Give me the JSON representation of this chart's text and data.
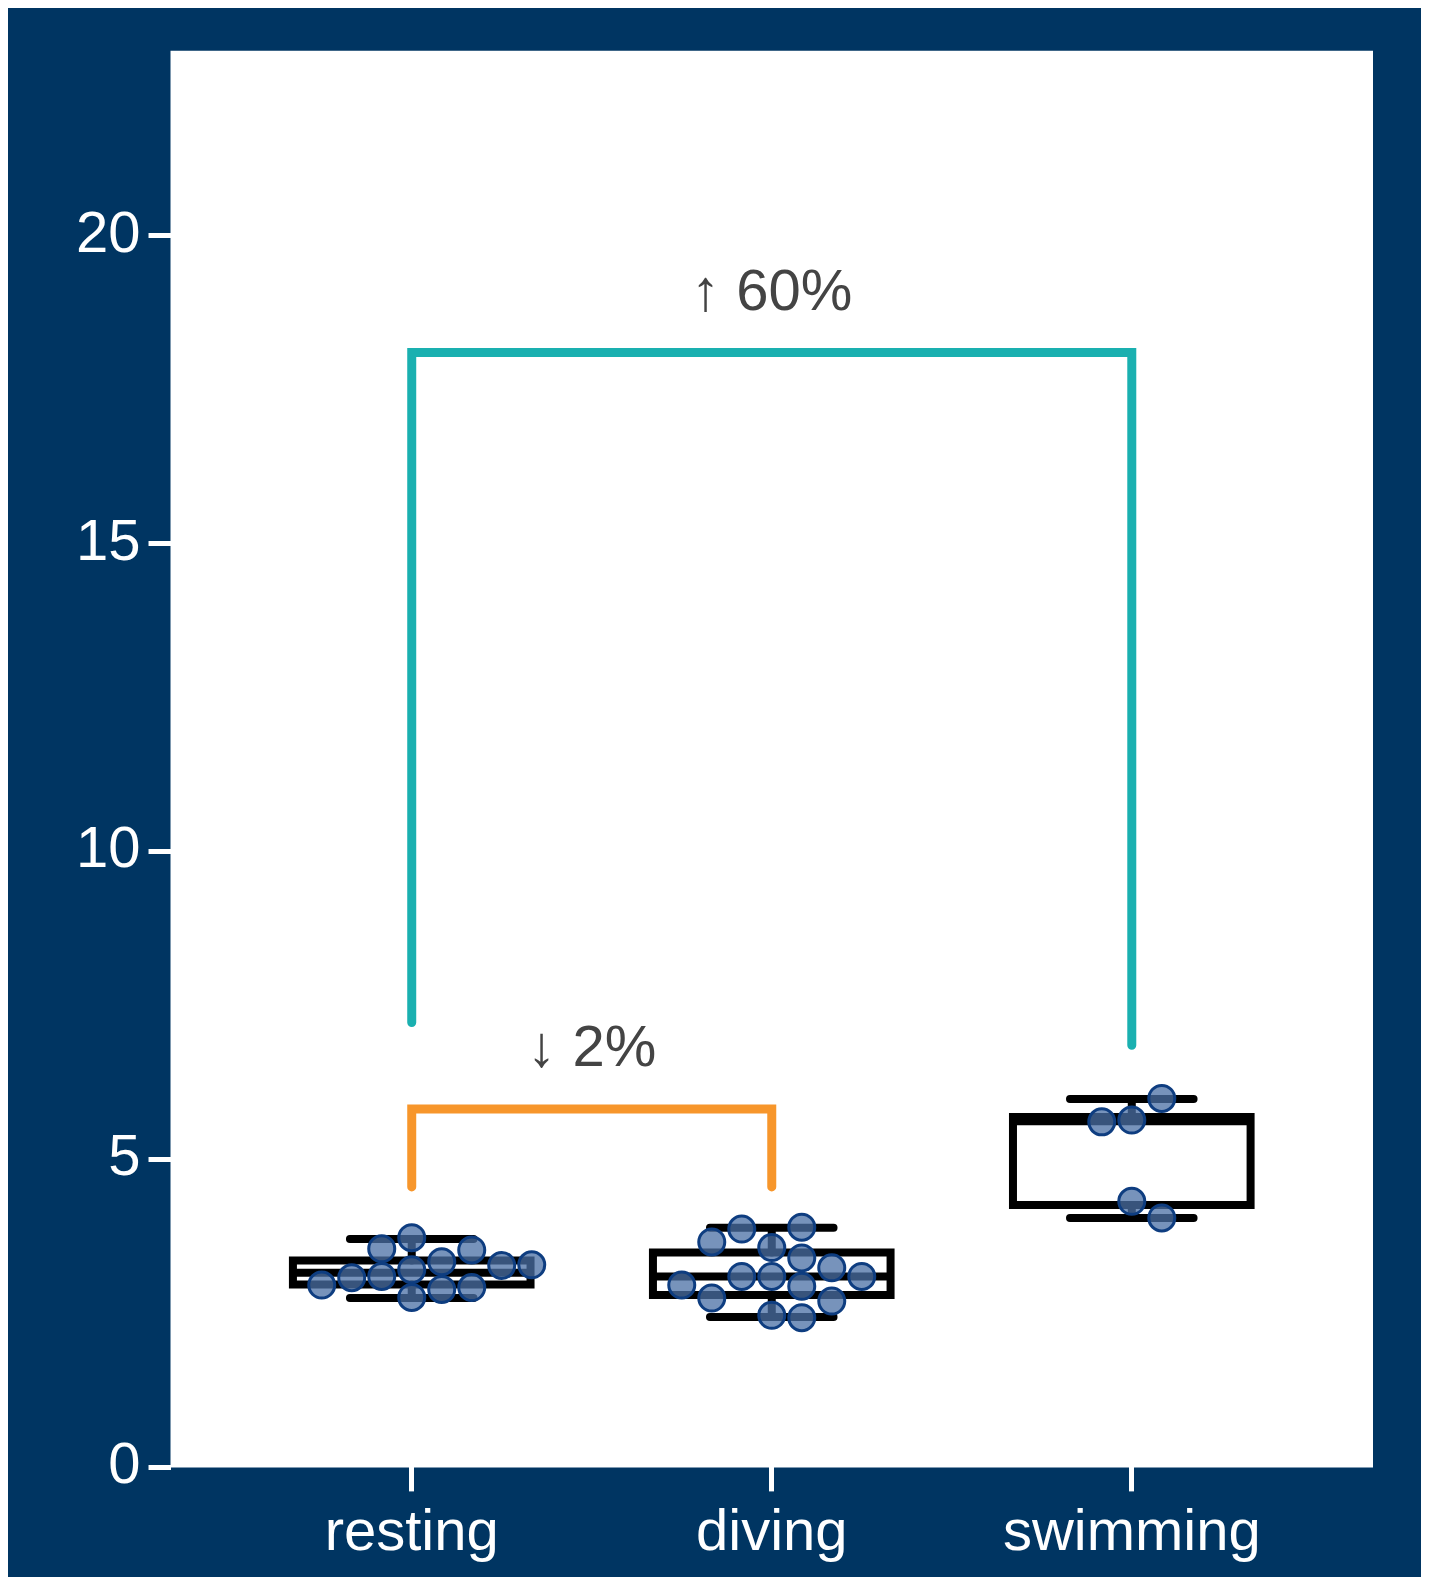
{
  "chart_data": {
    "type": "box",
    "categories": [
      "resting",
      "diving",
      "swimming"
    ],
    "ylim": [
      0,
      23
    ],
    "yticks": [
      0,
      5,
      10,
      15,
      20
    ],
    "grid": false,
    "legend": false,
    "boxes": [
      {
        "low": 2.75,
        "q1": 2.97,
        "median": 3.16,
        "q3": 3.36,
        "high": 3.71
      },
      {
        "low": 2.44,
        "q1": 2.8,
        "median": 3.1,
        "q3": 3.49,
        "high": 3.89
      },
      {
        "low": 4.05,
        "q1": 4.26,
        "median": 5.62,
        "q3": 5.69,
        "high": 5.98
      }
    ],
    "series": [
      {
        "type": "scatter",
        "color": "#4a6fa5",
        "x": [
          "resting",
          "resting",
          "resting",
          "resting",
          "resting",
          "resting",
          "resting",
          "resting",
          "resting",
          "resting",
          "resting",
          "resting",
          "resting",
          "diving",
          "diving",
          "diving",
          "diving",
          "diving",
          "diving",
          "diving",
          "diving",
          "diving",
          "diving",
          "diving",
          "diving",
          "diving",
          "diving",
          "diving",
          "swimming",
          "swimming",
          "swimming",
          "swimming",
          "swimming"
        ],
        "values": [
          3.21,
          3.34,
          2.89,
          3.1,
          3.55,
          2.92,
          3.73,
          3.08,
          3.28,
          2.76,
          3.53,
          2.96,
          3.29,
          3.57,
          3.1,
          3.9,
          2.94,
          2.47,
          3.1,
          3.87,
          3.24,
          2.7,
          3.4,
          2.75,
          3.66,
          3.1,
          2.43,
          2.96,
          5.64,
          5.99,
          5.61,
          4.32,
          4.05
        ]
      }
    ],
    "annotations": [
      "↑ 60%",
      "↓ 2%"
    ]
  }
}
